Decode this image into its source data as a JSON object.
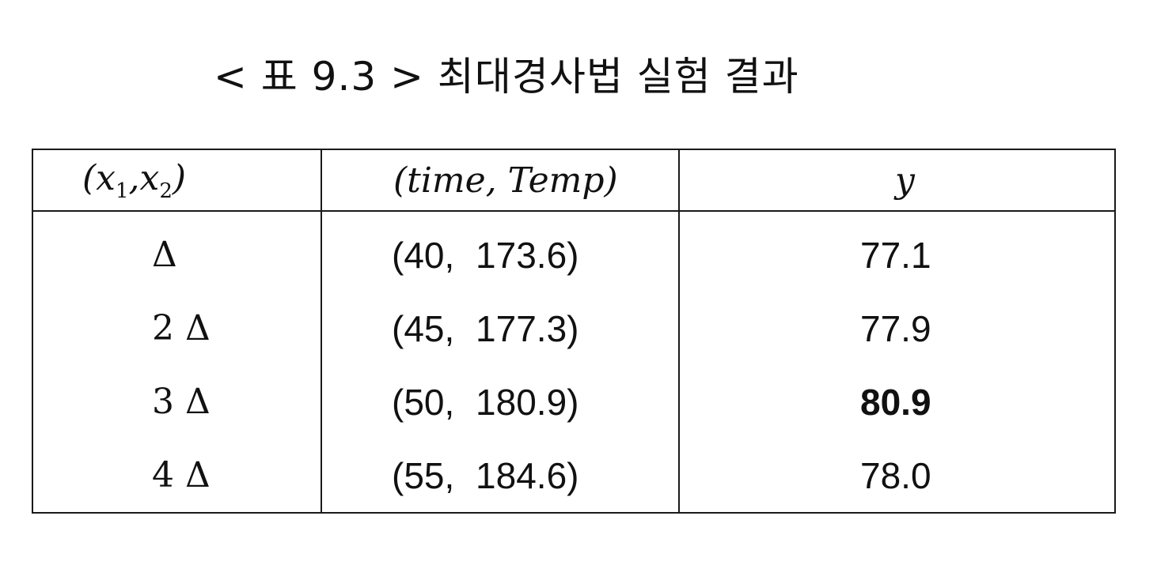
{
  "title": "< 표 9.3 > 최대경사법 실험 결과",
  "table": {
    "headers": {
      "col1_open": "(x",
      "col1_sub1": "1",
      "col1_mid": ",x",
      "col1_sub2": "2",
      "col1_close": ")",
      "col2": "(time, Temp)",
      "col3": "y"
    },
    "rows": [
      {
        "step": "Δ",
        "pair": "(40, 173.6)",
        "y": "77.1"
      },
      {
        "step": "2 Δ",
        "pair": "(45, 177.3)",
        "y": "77.9"
      },
      {
        "step": "3 Δ",
        "pair": "(50, 180.9)",
        "y": "80.9"
      },
      {
        "step": "4 Δ",
        "pair": "(55, 184.6)",
        "y": "78.0"
      }
    ]
  }
}
